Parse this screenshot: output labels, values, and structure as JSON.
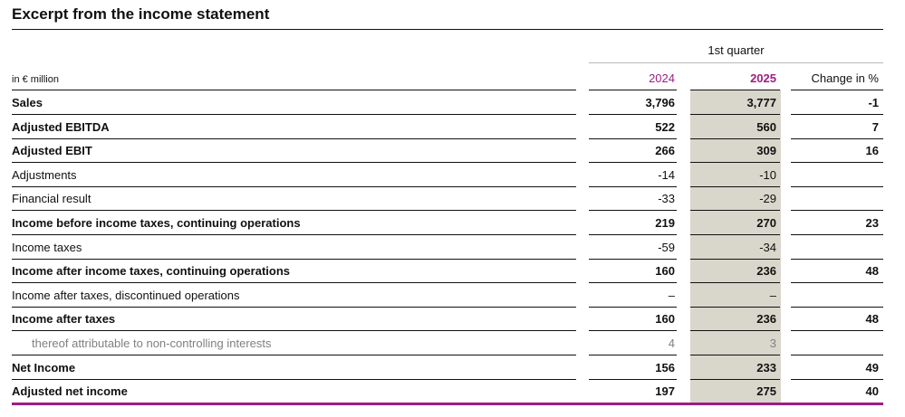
{
  "title": "Excerpt from the income statement",
  "header": {
    "period_label": "1st quarter",
    "unit_label": "in € million",
    "col_2024": "2024",
    "col_2025": "2025",
    "col_change": "Change in %"
  },
  "colors": {
    "accent": "#9c1e83",
    "highlight_column": "#d9d6cc",
    "muted_text": "#808080"
  },
  "rows": [
    {
      "label": "Sales",
      "v2024": "3,796",
      "v2025": "3,777",
      "change": "-1",
      "style": "bold"
    },
    {
      "label": "Adjusted EBITDA",
      "v2024": "522",
      "v2025": "560",
      "change": "7",
      "style": "bold"
    },
    {
      "label": "Adjusted EBIT",
      "v2024": "266",
      "v2025": "309",
      "change": "16",
      "style": "bold"
    },
    {
      "label": "Adjustments",
      "v2024": "-14",
      "v2025": "-10",
      "change": "",
      "style": "normal"
    },
    {
      "label": "Financial result",
      "v2024": "-33",
      "v2025": "-29",
      "change": "",
      "style": "normal"
    },
    {
      "label": "Income before income taxes, continuing operations",
      "v2024": "219",
      "v2025": "270",
      "change": "23",
      "style": "bold"
    },
    {
      "label": "Income taxes",
      "v2024": "-59",
      "v2025": "-34",
      "change": "",
      "style": "normal"
    },
    {
      "label": "Income after income taxes, continuing operations",
      "v2024": "160",
      "v2025": "236",
      "change": "48",
      "style": "bold"
    },
    {
      "label": "Income after taxes, discontinued operations",
      "v2024": "–",
      "v2025": "–",
      "change": "",
      "style": "normal"
    },
    {
      "label": "Income after taxes",
      "v2024": "160",
      "v2025": "236",
      "change": "48",
      "style": "bold"
    },
    {
      "label": "thereof attributable to non-controlling interests",
      "v2024": "4",
      "v2025": "3",
      "change": "",
      "style": "muted"
    },
    {
      "label": "Net Income",
      "v2024": "156",
      "v2025": "233",
      "change": "49",
      "style": "bold"
    },
    {
      "label": "Adjusted net income",
      "v2024": "197",
      "v2025": "275",
      "change": "40",
      "style": "bold"
    }
  ]
}
